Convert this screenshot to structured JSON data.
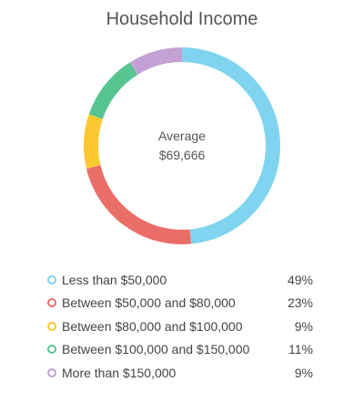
{
  "chart_data": {
    "type": "pie",
    "title": "Household Income",
    "center": {
      "label": "Average",
      "value": "$69,666"
    },
    "categories": [
      "Less than $50,000",
      "Between $50,000 and $80,000",
      "Between $80,000 and $100,000",
      "Between $100,000 and $150,000",
      "More than $150,000"
    ],
    "values": [
      49,
      23,
      9,
      11,
      9
    ],
    "value_labels": [
      "49%",
      "23%",
      "9%",
      "11%",
      "9%"
    ],
    "colors": [
      "#80d4ef",
      "#ea6e68",
      "#fdc82f",
      "#56c58f",
      "#c3a1d4"
    ],
    "legend_placement": "bottom"
  }
}
